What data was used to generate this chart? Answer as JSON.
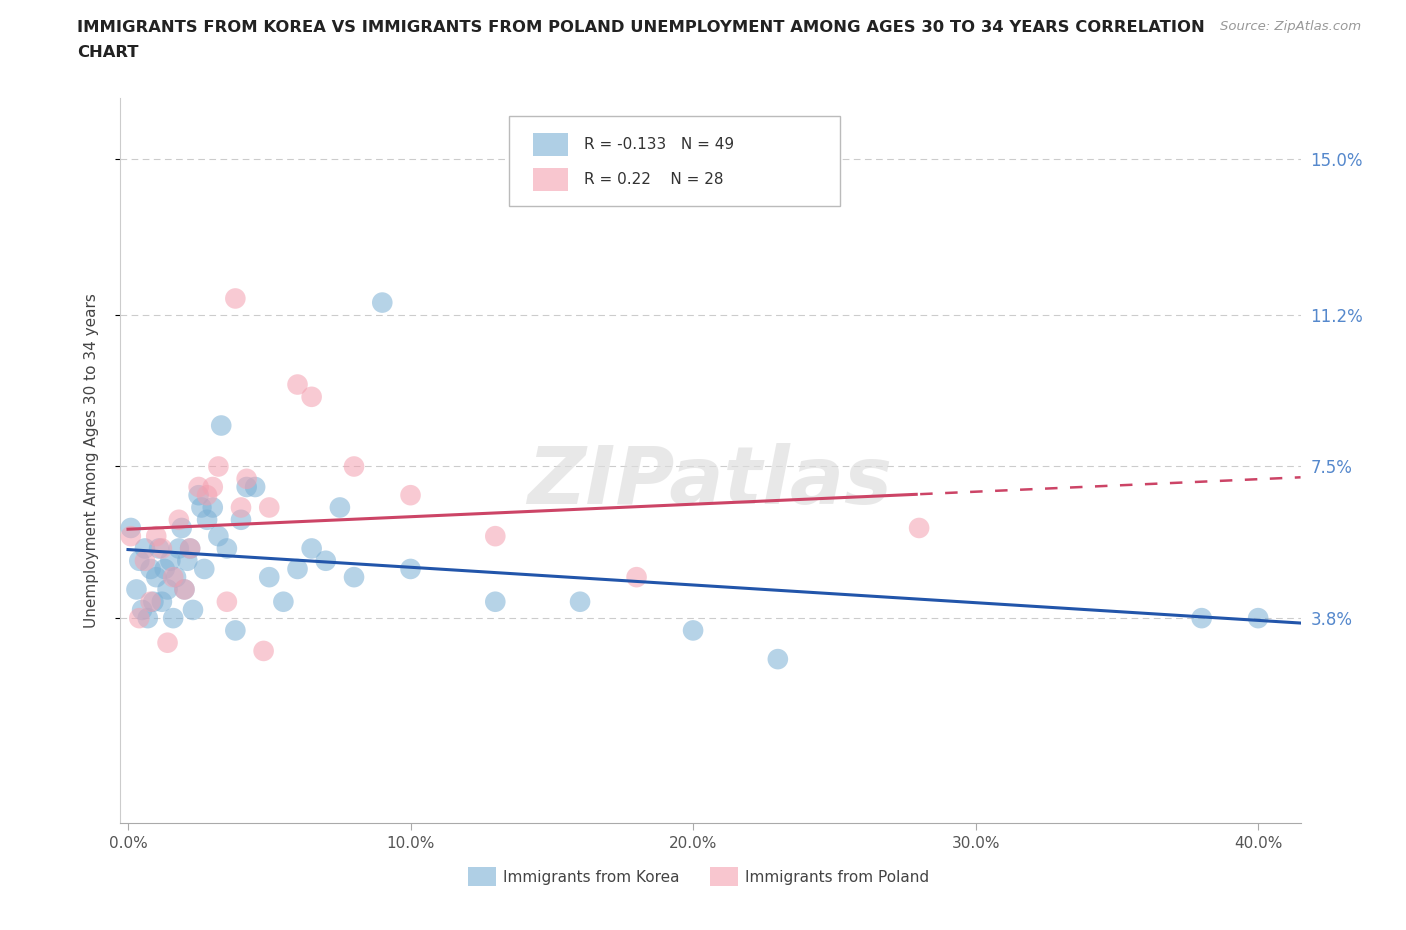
{
  "title_line1": "IMMIGRANTS FROM KOREA VS IMMIGRANTS FROM POLAND UNEMPLOYMENT AMONG AGES 30 TO 34 YEARS CORRELATION",
  "title_line2": "CHART",
  "source": "Source: ZipAtlas.com",
  "ylabel_label": "Unemployment Among Ages 30 to 34 years",
  "legend1_label": "Immigrants from Korea",
  "legend2_label": "Immigrants from Poland",
  "R_korea": -0.133,
  "N_korea": 49,
  "R_poland": 0.22,
  "N_poland": 28,
  "color_korea": "#7BAFD4",
  "color_poland": "#F4A0B0",
  "line_korea": "#2255AA",
  "line_poland": "#CC4466",
  "xlim": [
    -0.003,
    0.415
  ],
  "ylim": [
    -0.012,
    0.165
  ],
  "ytick_vals": [
    0.038,
    0.075,
    0.112,
    0.15
  ],
  "ytick_labels": [
    "3.8%",
    "7.5%",
    "11.2%",
    "15.0%"
  ],
  "xtick_vals": [
    0.0,
    0.1,
    0.2,
    0.3,
    0.4
  ],
  "xtick_labels": [
    "0.0%",
    "10.0%",
    "20.0%",
    "30.0%",
    "40.0%"
  ],
  "korea_x": [
    0.001,
    0.003,
    0.004,
    0.005,
    0.006,
    0.007,
    0.008,
    0.009,
    0.01,
    0.011,
    0.012,
    0.013,
    0.014,
    0.015,
    0.016,
    0.017,
    0.018,
    0.019,
    0.02,
    0.021,
    0.022,
    0.023,
    0.025,
    0.026,
    0.027,
    0.028,
    0.03,
    0.032,
    0.033,
    0.035,
    0.038,
    0.04,
    0.042,
    0.045,
    0.05,
    0.055,
    0.06,
    0.065,
    0.07,
    0.075,
    0.08,
    0.09,
    0.1,
    0.13,
    0.16,
    0.2,
    0.23,
    0.38,
    0.4
  ],
  "korea_y": [
    0.06,
    0.045,
    0.052,
    0.04,
    0.055,
    0.038,
    0.05,
    0.042,
    0.048,
    0.055,
    0.042,
    0.05,
    0.045,
    0.052,
    0.038,
    0.048,
    0.055,
    0.06,
    0.045,
    0.052,
    0.055,
    0.04,
    0.068,
    0.065,
    0.05,
    0.062,
    0.065,
    0.058,
    0.085,
    0.055,
    0.035,
    0.062,
    0.07,
    0.07,
    0.048,
    0.042,
    0.05,
    0.055,
    0.052,
    0.065,
    0.048,
    0.115,
    0.05,
    0.042,
    0.042,
    0.035,
    0.028,
    0.038,
    0.038
  ],
  "poland_x": [
    0.001,
    0.004,
    0.006,
    0.008,
    0.01,
    0.012,
    0.014,
    0.016,
    0.018,
    0.02,
    0.022,
    0.025,
    0.028,
    0.03,
    0.032,
    0.035,
    0.038,
    0.04,
    0.042,
    0.048,
    0.05,
    0.06,
    0.065,
    0.08,
    0.1,
    0.13,
    0.18,
    0.28
  ],
  "poland_y": [
    0.058,
    0.038,
    0.052,
    0.042,
    0.058,
    0.055,
    0.032,
    0.048,
    0.062,
    0.045,
    0.055,
    0.07,
    0.068,
    0.07,
    0.075,
    0.042,
    0.116,
    0.065,
    0.072,
    0.03,
    0.065,
    0.095,
    0.092,
    0.075,
    0.068,
    0.058,
    0.048,
    0.06
  ]
}
